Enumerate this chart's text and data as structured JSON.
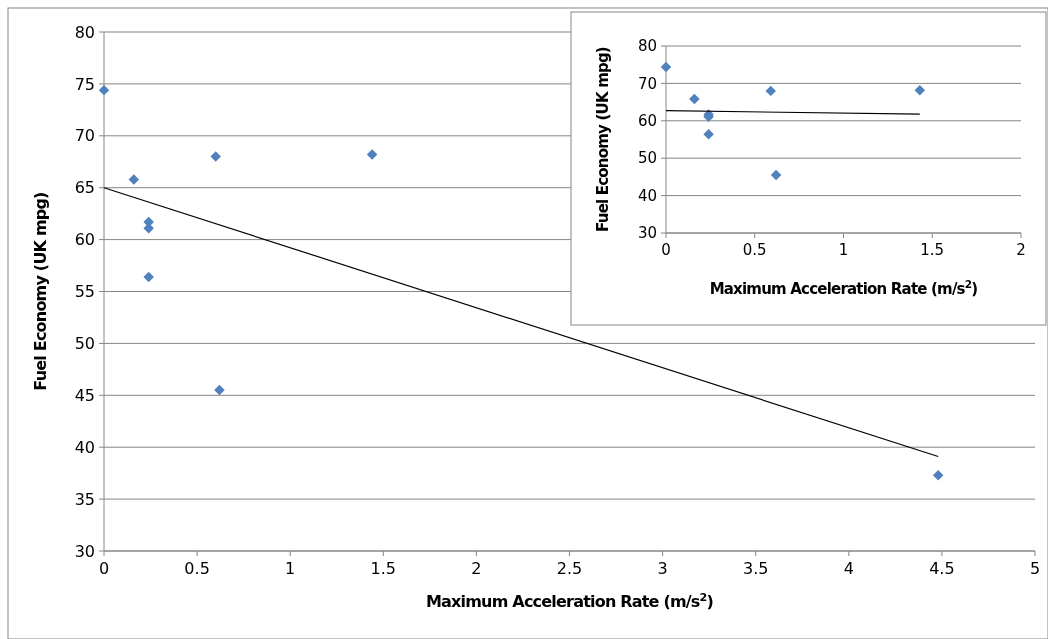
{
  "chart_data": [
    {
      "type": "scatter",
      "xlabel": "Maximum Acceleration Rate (m/s$^{2}$)",
      "ylabel": "Fuel Economy (UK mpg)",
      "xlim": [
        0,
        5
      ],
      "xticks": [
        0,
        0.5,
        1,
        1.5,
        2,
        2.5,
        3,
        3.5,
        4,
        4.5,
        5
      ],
      "ylim": [
        30,
        80
      ],
      "yticks": [
        30,
        35,
        40,
        45,
        50,
        55,
        60,
        65,
        70,
        75,
        80
      ],
      "grid": "y",
      "marker": "diamond",
      "series": [
        {
          "color": "#4f81bd",
          "x": [
            0,
            0.16,
            0.24,
            0.24,
            0.24,
            0.6,
            0.62,
            1.44,
            4.48
          ],
          "values": [
            74.4,
            65.8,
            61.7,
            61.1,
            56.4,
            68,
            45.5,
            68.2,
            37.3
          ]
        },
        {
          "type": "line",
          "marker": "none",
          "color": "#000000",
          "x": [
            0,
            4.48
          ],
          "values": [
            65,
            39.1
          ]
        }
      ]
    },
    {
      "type": "scatter",
      "xlabel": "Maximum Acceleration Rate (m/s$^{2}$)",
      "ylabel": "Fuel Economy (UK mpg)",
      "xlim": [
        0,
        2
      ],
      "xticks": [
        0,
        0.5,
        1,
        1.5,
        2
      ],
      "ylim": [
        30,
        80
      ],
      "yticks": [
        30,
        40,
        50,
        60,
        70,
        80
      ],
      "grid": "y",
      "marker": "diamond",
      "series": [
        {
          "color": "#4f81bd",
          "x": [
            0,
            0.16,
            0.24,
            0.24,
            0.24,
            0.59,
            0.62,
            1.43
          ],
          "values": [
            74.4,
            65.8,
            61.7,
            61.1,
            56.4,
            68,
            45.5,
            68.2
          ]
        },
        {
          "type": "line",
          "marker": "none",
          "color": "#000000",
          "x": [
            0,
            1.43
          ],
          "values": [
            62.7,
            61.8
          ]
        }
      ]
    }
  ]
}
